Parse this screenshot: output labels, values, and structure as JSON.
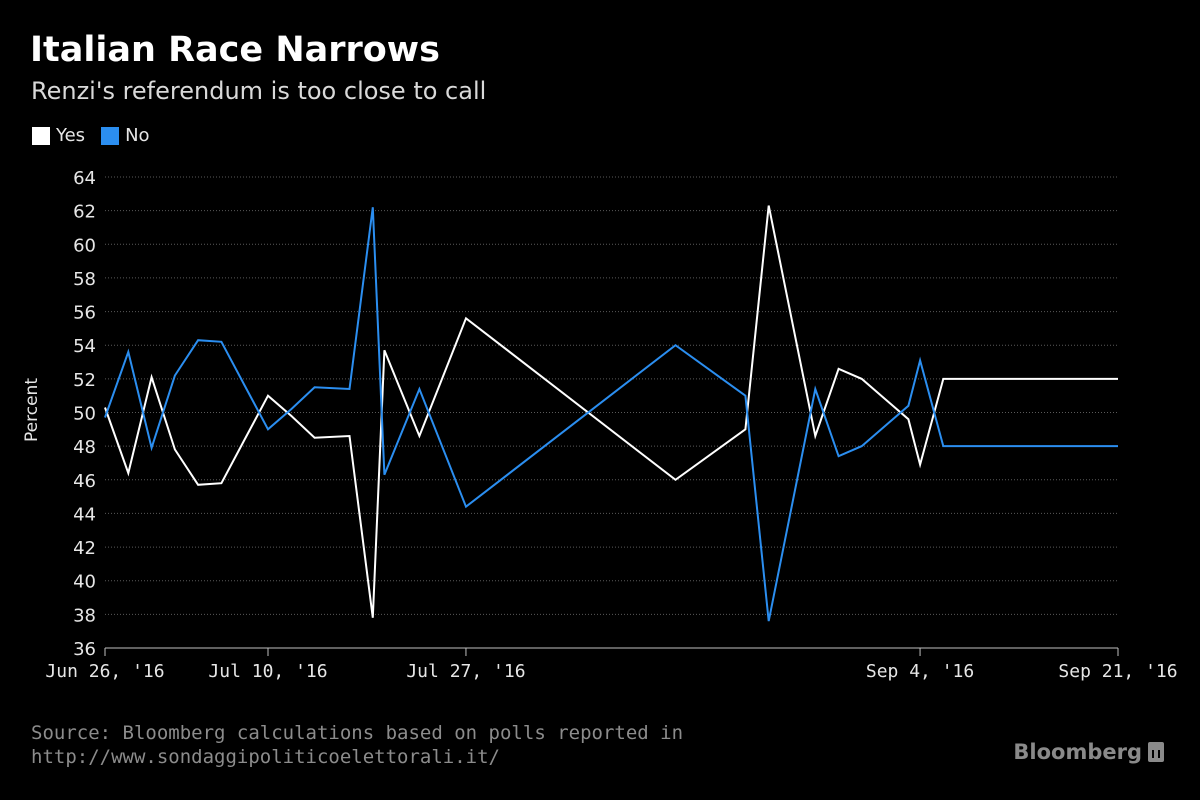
{
  "chart_data": {
    "type": "line",
    "title": "Italian Race Narrows",
    "subtitle": "Renzi's referendum is too close to call",
    "ylabel": "Percent",
    "xlabel": "",
    "ylim": [
      36,
      64
    ],
    "yticks": [
      36,
      38,
      40,
      42,
      44,
      46,
      48,
      50,
      52,
      54,
      56,
      58,
      60,
      62,
      64
    ],
    "xlim": [
      "2016-06-26",
      "2016-09-21"
    ],
    "xticks": [
      {
        "date": "2016-06-26",
        "label": "Jun 26, '16"
      },
      {
        "date": "2016-07-10",
        "label": "Jul 10, '16"
      },
      {
        "date": "2016-07-27",
        "label": "Jul 27, '16"
      },
      {
        "date": "2016-09-04",
        "label": "Sep 4, '16"
      },
      {
        "date": "2016-09-21",
        "label": "Sep 21, '16"
      }
    ],
    "grid": true,
    "legend_position": "top-left",
    "x": [
      "2016-06-26",
      "2016-06-28",
      "2016-06-30",
      "2016-07-02",
      "2016-07-04",
      "2016-07-06",
      "2016-07-08",
      "2016-07-10",
      "2016-07-12",
      "2016-07-14",
      "2016-07-17",
      "2016-07-19",
      "2016-07-20",
      "2016-07-23",
      "2016-07-27",
      "2016-08-14",
      "2016-08-20",
      "2016-08-22",
      "2016-08-26",
      "2016-08-28",
      "2016-08-30",
      "2016-09-03",
      "2016-09-04",
      "2016-09-06",
      "2016-09-08",
      "2016-09-10",
      "2016-09-14",
      "2016-09-18",
      "2016-09-21"
    ],
    "series": [
      {
        "name": "Yes",
        "color": "#ffffff",
        "values": [
          50.3,
          46.4,
          52.1,
          47.8,
          45.7,
          45.8,
          48.4,
          51.0,
          49.8,
          48.5,
          48.6,
          37.8,
          53.7,
          48.6,
          55.6,
          46.0,
          49.0,
          62.3,
          48.6,
          52.6,
          52.0,
          49.6,
          46.9,
          52.0,
          52.0,
          52.0,
          52.0,
          52.0,
          52.0
        ]
      },
      {
        "name": "No",
        "color": "#2b8ef0",
        "values": [
          49.7,
          53.6,
          47.9,
          52.2,
          54.3,
          54.2,
          51.6,
          49.0,
          50.2,
          51.5,
          51.4,
          62.2,
          46.3,
          51.4,
          44.4,
          54.0,
          51.0,
          37.6,
          51.4,
          47.4,
          48.0,
          50.4,
          53.1,
          48.0,
          48.0,
          48.0,
          48.0,
          48.0,
          48.0
        ]
      }
    ]
  },
  "source": {
    "line1": "Source: Bloomberg calculations based on polls reported in",
    "line2": "http://www.sondaggipoliticoelettorali.it/"
  },
  "brand": {
    "name": "Bloomberg"
  }
}
